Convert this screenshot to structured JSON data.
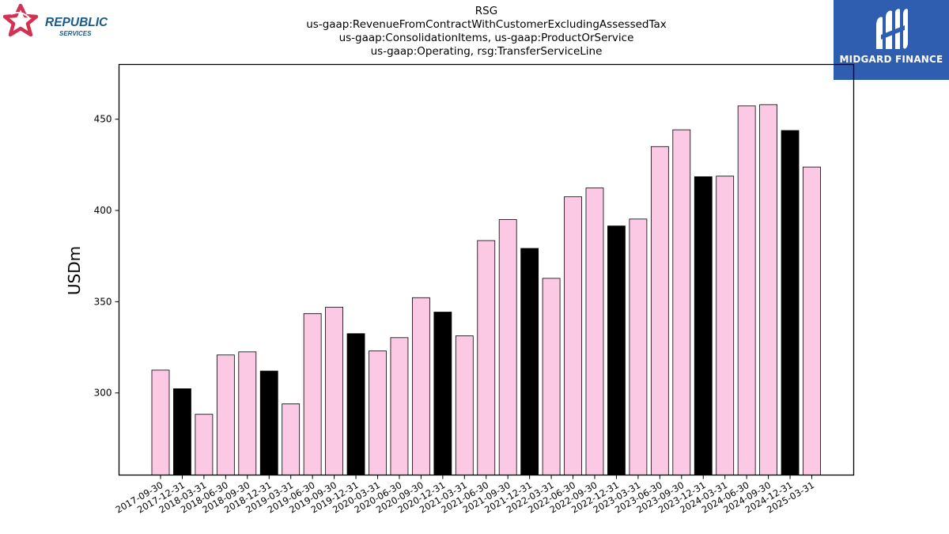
{
  "header": {
    "title_lines": [
      "RSG",
      "us-gaap:RevenueFromContractWithCustomerExcludingAssessedTax",
      "us-gaap:ConsolidationItems, us-gaap:ProductOrService",
      "us-gaap:Operating, rsg:TransferServiceLine"
    ]
  },
  "logos": {
    "left": {
      "line1": "REPUBLIC",
      "line2": "SERVICES",
      "star_icon": "republic-star-icon",
      "color": "#d5304f",
      "text_color": "#1a5a8a"
    },
    "right": {
      "brand": "MIDGARD FINANCE",
      "icon": "midgard-m-icon",
      "background": "#2f5db0"
    }
  },
  "chart_data": {
    "type": "bar",
    "title": "RSG",
    "ylabel": "USDm",
    "xlabel": "",
    "ylim": [
      255,
      480
    ],
    "yticks": [
      300,
      350,
      400,
      450
    ],
    "colors": {
      "quarter": "#fcc9e4",
      "year_end": "#000000",
      "edge": "#000000"
    },
    "categories": [
      "2017-09-30",
      "2017-12-31",
      "2018-03-31",
      "2018-06-30",
      "2018-09-30",
      "2018-12-31",
      "2019-03-31",
      "2019-06-30",
      "2019-09-30",
      "2019-12-31",
      "2020-03-31",
      "2020-06-30",
      "2020-09-30",
      "2020-12-31",
      "2021-03-31",
      "2021-06-30",
      "2021-09-30",
      "2021-12-31",
      "2022-03-31",
      "2022-06-30",
      "2022-09-30",
      "2022-12-31",
      "2023-03-31",
      "2023-06-30",
      "2023-09-30",
      "2023-12-31",
      "2024-03-31",
      "2024-06-30",
      "2024-09-30",
      "2024-12-31",
      "2025-03-31"
    ],
    "values": [
      312.5,
      302.3,
      288.3,
      320.8,
      322.5,
      312.0,
      294.0,
      343.5,
      347.0,
      332.5,
      323.0,
      330.3,
      352.2,
      344.3,
      331.3,
      383.5,
      395.0,
      379.2,
      362.8,
      407.5,
      412.3,
      391.5,
      395.3,
      435.0,
      444.2,
      418.5,
      418.8,
      457.3,
      458.0,
      443.8,
      423.8
    ],
    "year_end": [
      false,
      true,
      false,
      false,
      false,
      true,
      false,
      false,
      false,
      true,
      false,
      false,
      false,
      true,
      false,
      false,
      false,
      true,
      false,
      false,
      false,
      true,
      false,
      false,
      false,
      true,
      false,
      false,
      false,
      true,
      false
    ]
  }
}
